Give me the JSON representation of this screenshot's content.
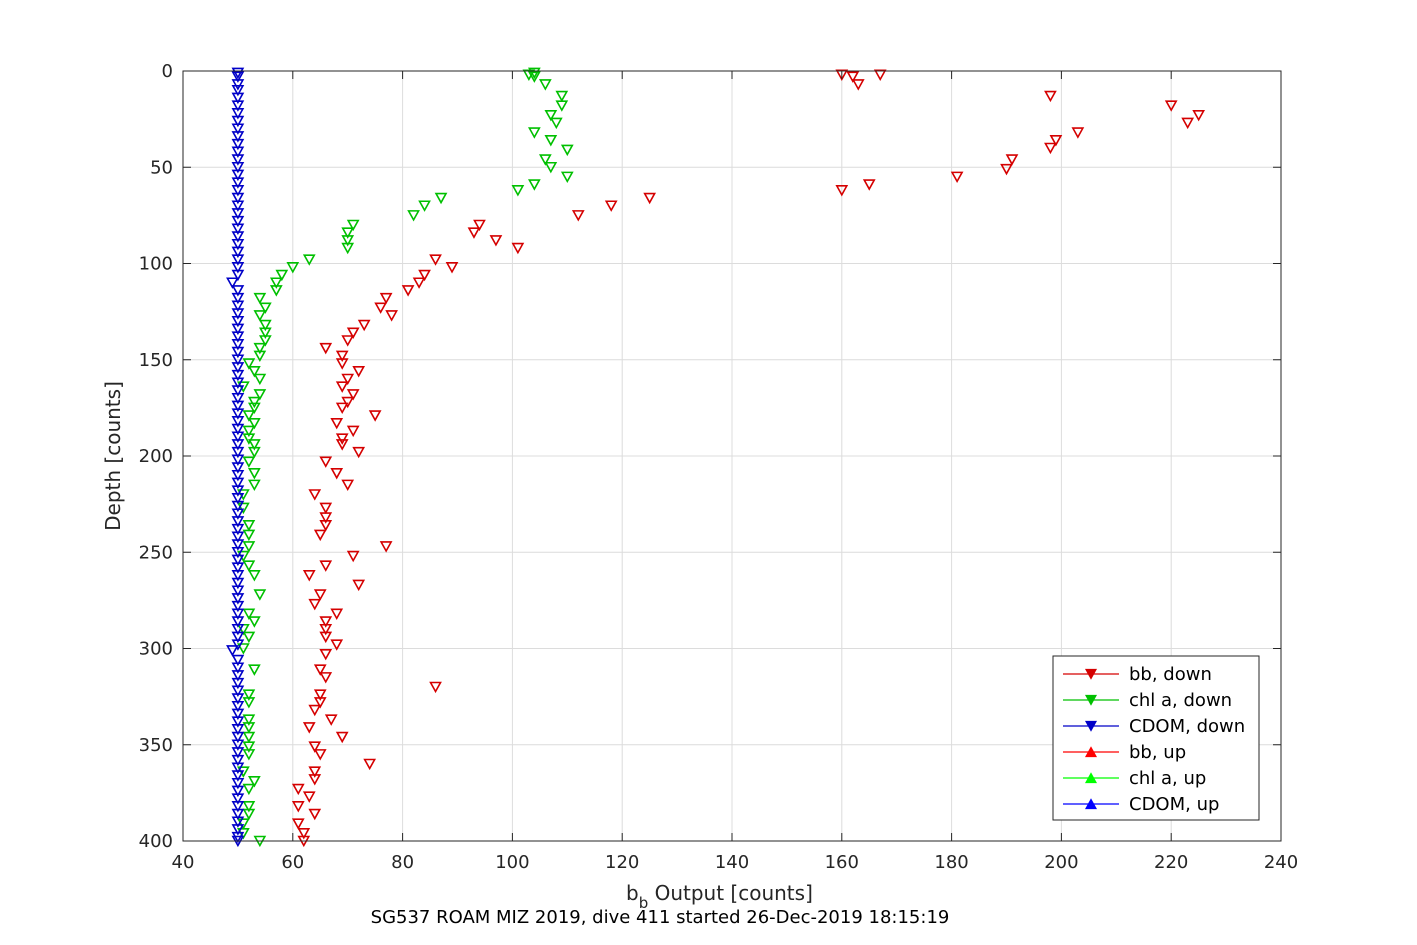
{
  "chart_data": {
    "type": "scatter",
    "xlabel": "b",
    "xlabel_sub": "b",
    "xlabel_rest": " Output [counts]",
    "ylabel": "Depth [counts]",
    "caption": "SG537 ROAM MIZ 2019, dive 411 started 26-Dec-2019 18:15:19",
    "xlim": [
      40,
      240
    ],
    "ylim": [
      0,
      400
    ],
    "y_reversed": true,
    "grid": true,
    "legend_position": "bottom-right",
    "xticks": [
      "40",
      "60",
      "80",
      "100",
      "120",
      "140",
      "160",
      "180",
      "200",
      "220",
      "240"
    ],
    "yticks": [
      "0",
      "50",
      "100",
      "150",
      "200",
      "250",
      "300",
      "350",
      "400"
    ],
    "legend": [
      {
        "label": "bb, down",
        "color": "#d50000",
        "marker": "down"
      },
      {
        "label": "chl a, down",
        "color": "#00c000",
        "marker": "down"
      },
      {
        "label": "CDOM, down",
        "color": "#0000c8",
        "marker": "down"
      },
      {
        "label": "bb, up",
        "color": "#ff0000",
        "marker": "up"
      },
      {
        "label": "chl a, up",
        "color": "#00ff00",
        "marker": "up"
      },
      {
        "label": "CDOM, up",
        "color": "#0000ff",
        "marker": "up"
      }
    ],
    "series": [
      {
        "name": "bb, down",
        "color": "#d50000",
        "marker": "down",
        "points": [
          [
            160,
            2
          ],
          [
            162,
            3
          ],
          [
            167,
            2
          ],
          [
            163,
            7
          ],
          [
            198,
            13
          ],
          [
            220,
            18
          ],
          [
            225,
            23
          ],
          [
            223,
            27
          ],
          [
            203,
            32
          ],
          [
            199,
            36
          ],
          [
            198,
            40
          ],
          [
            191,
            46
          ],
          [
            190,
            51
          ],
          [
            181,
            55
          ],
          [
            165,
            59
          ],
          [
            160,
            62
          ],
          [
            125,
            66
          ],
          [
            118,
            70
          ],
          [
            112,
            75
          ],
          [
            94,
            80
          ],
          [
            93,
            84
          ],
          [
            97,
            88
          ],
          [
            101,
            92
          ],
          [
            86,
            98
          ],
          [
            89,
            102
          ],
          [
            84,
            106
          ],
          [
            83,
            110
          ],
          [
            81,
            114
          ],
          [
            77,
            118
          ],
          [
            76,
            123
          ],
          [
            78,
            127
          ],
          [
            73,
            132
          ],
          [
            71,
            136
          ],
          [
            70,
            140
          ],
          [
            66,
            144
          ],
          [
            69,
            148
          ],
          [
            69,
            152
          ],
          [
            72,
            156
          ],
          [
            70,
            160
          ],
          [
            69,
            164
          ],
          [
            71,
            168
          ],
          [
            70,
            172
          ],
          [
            69,
            175
          ],
          [
            75,
            179
          ],
          [
            68,
            183
          ],
          [
            71,
            187
          ],
          [
            69,
            191
          ],
          [
            69,
            194
          ],
          [
            72,
            198
          ],
          [
            66,
            203
          ],
          [
            68,
            209
          ],
          [
            70,
            215
          ],
          [
            64,
            220
          ],
          [
            66,
            227
          ],
          [
            66,
            232
          ],
          [
            66,
            236
          ],
          [
            65,
            241
          ],
          [
            77,
            247
          ],
          [
            71,
            252
          ],
          [
            66,
            257
          ],
          [
            63,
            262
          ],
          [
            72,
            267
          ],
          [
            65,
            272
          ],
          [
            64,
            277
          ],
          [
            68,
            282
          ],
          [
            66,
            286
          ],
          [
            66,
            290
          ],
          [
            66,
            294
          ],
          [
            68,
            298
          ],
          [
            66,
            303
          ],
          [
            65,
            311
          ],
          [
            66,
            315
          ],
          [
            86,
            320
          ],
          [
            65,
            324
          ],
          [
            65,
            328
          ],
          [
            64,
            332
          ],
          [
            67,
            337
          ],
          [
            63,
            341
          ],
          [
            69,
            346
          ],
          [
            64,
            351
          ],
          [
            65,
            355
          ],
          [
            74,
            360
          ],
          [
            64,
            364
          ],
          [
            64,
            368
          ],
          [
            61,
            373
          ],
          [
            63,
            377
          ],
          [
            61,
            382
          ],
          [
            64,
            386
          ],
          [
            61,
            391
          ],
          [
            62,
            396
          ],
          [
            62,
            400
          ]
        ]
      },
      {
        "name": "chl a, down",
        "color": "#00c000",
        "marker": "down",
        "points": [
          [
            104,
            1
          ],
          [
            103,
            2
          ],
          [
            104,
            3
          ],
          [
            106,
            7
          ],
          [
            109,
            13
          ],
          [
            109,
            18
          ],
          [
            107,
            23
          ],
          [
            108,
            27
          ],
          [
            104,
            32
          ],
          [
            107,
            36
          ],
          [
            110,
            41
          ],
          [
            106,
            46
          ],
          [
            107,
            50
          ],
          [
            110,
            55
          ],
          [
            104,
            59
          ],
          [
            101,
            62
          ],
          [
            87,
            66
          ],
          [
            84,
            70
          ],
          [
            82,
            75
          ],
          [
            71,
            80
          ],
          [
            70,
            84
          ],
          [
            70,
            88
          ],
          [
            70,
            92
          ],
          [
            63,
            98
          ],
          [
            60,
            102
          ],
          [
            58,
            106
          ],
          [
            57,
            110
          ],
          [
            57,
            114
          ],
          [
            54,
            118
          ],
          [
            55,
            123
          ],
          [
            54,
            127
          ],
          [
            55,
            132
          ],
          [
            55,
            136
          ],
          [
            55,
            140
          ],
          [
            54,
            144
          ],
          [
            54,
            148
          ],
          [
            52,
            152
          ],
          [
            53,
            156
          ],
          [
            54,
            160
          ],
          [
            51,
            164
          ],
          [
            54,
            168
          ],
          [
            53,
            172
          ],
          [
            53,
            175
          ],
          [
            52,
            179
          ],
          [
            53,
            183
          ],
          [
            52,
            187
          ],
          [
            52,
            191
          ],
          [
            53,
            194
          ],
          [
            53,
            198
          ],
          [
            52,
            203
          ],
          [
            53,
            209
          ],
          [
            53,
            215
          ],
          [
            51,
            220
          ],
          [
            51,
            227
          ],
          [
            52,
            236
          ],
          [
            52,
            241
          ],
          [
            52,
            247
          ],
          [
            51,
            252
          ],
          [
            52,
            257
          ],
          [
            53,
            262
          ],
          [
            54,
            272
          ],
          [
            52,
            282
          ],
          [
            53,
            286
          ],
          [
            51,
            290
          ],
          [
            52,
            294
          ],
          [
            51,
            300
          ],
          [
            53,
            311
          ],
          [
            52,
            324
          ],
          [
            52,
            328
          ],
          [
            52,
            337
          ],
          [
            52,
            341
          ],
          [
            52,
            346
          ],
          [
            52,
            351
          ],
          [
            52,
            355
          ],
          [
            51,
            364
          ],
          [
            53,
            369
          ],
          [
            52,
            373
          ],
          [
            52,
            382
          ],
          [
            52,
            386
          ],
          [
            51,
            391
          ],
          [
            51,
            396
          ],
          [
            54,
            400
          ]
        ]
      },
      {
        "name": "CDOM, down",
        "color": "#0000c8",
        "marker": "down",
        "points": [
          [
            50,
            1
          ],
          [
            50,
            3
          ],
          [
            50,
            7
          ],
          [
            50,
            10
          ],
          [
            50,
            14
          ],
          [
            50,
            18
          ],
          [
            50,
            22
          ],
          [
            50,
            26
          ],
          [
            50,
            30
          ],
          [
            50,
            34
          ],
          [
            50,
            38
          ],
          [
            50,
            42
          ],
          [
            50,
            46
          ],
          [
            50,
            50
          ],
          [
            50,
            54
          ],
          [
            50,
            58
          ],
          [
            50,
            62
          ],
          [
            50,
            66
          ],
          [
            50,
            70
          ],
          [
            50,
            74
          ],
          [
            50,
            78
          ],
          [
            50,
            82
          ],
          [
            50,
            86
          ],
          [
            50,
            90
          ],
          [
            50,
            94
          ],
          [
            50,
            98
          ],
          [
            50,
            102
          ],
          [
            50,
            106
          ],
          [
            49,
            110
          ],
          [
            50,
            114
          ],
          [
            50,
            118
          ],
          [
            50,
            122
          ],
          [
            50,
            126
          ],
          [
            50,
            130
          ],
          [
            50,
            134
          ],
          [
            50,
            138
          ],
          [
            50,
            142
          ],
          [
            50,
            146
          ],
          [
            50,
            150
          ],
          [
            50,
            154
          ],
          [
            50,
            158
          ],
          [
            50,
            162
          ],
          [
            50,
            166
          ],
          [
            50,
            170
          ],
          [
            50,
            174
          ],
          [
            50,
            178
          ],
          [
            50,
            182
          ],
          [
            50,
            186
          ],
          [
            50,
            190
          ],
          [
            50,
            194
          ],
          [
            50,
            198
          ],
          [
            50,
            202
          ],
          [
            50,
            206
          ],
          [
            50,
            210
          ],
          [
            50,
            214
          ],
          [
            50,
            218
          ],
          [
            50,
            222
          ],
          [
            50,
            226
          ],
          [
            50,
            230
          ],
          [
            50,
            234
          ],
          [
            50,
            238
          ],
          [
            50,
            242
          ],
          [
            50,
            246
          ],
          [
            50,
            250
          ],
          [
            50,
            254
          ],
          [
            50,
            258
          ],
          [
            50,
            262
          ],
          [
            50,
            266
          ],
          [
            50,
            270
          ],
          [
            50,
            274
          ],
          [
            50,
            278
          ],
          [
            50,
            282
          ],
          [
            50,
            286
          ],
          [
            50,
            290
          ],
          [
            50,
            294
          ],
          [
            50,
            298
          ],
          [
            49,
            301
          ],
          [
            50,
            306
          ],
          [
            50,
            310
          ],
          [
            50,
            314
          ],
          [
            50,
            318
          ],
          [
            50,
            322
          ],
          [
            50,
            326
          ],
          [
            50,
            330
          ],
          [
            50,
            334
          ],
          [
            50,
            338
          ],
          [
            50,
            342
          ],
          [
            50,
            346
          ],
          [
            50,
            350
          ],
          [
            50,
            354
          ],
          [
            50,
            358
          ],
          [
            50,
            362
          ],
          [
            50,
            366
          ],
          [
            50,
            370
          ],
          [
            50,
            374
          ],
          [
            50,
            378
          ],
          [
            50,
            382
          ],
          [
            50,
            386
          ],
          [
            50,
            390
          ],
          [
            50,
            394
          ],
          [
            50,
            398
          ],
          [
            50,
            400
          ]
        ]
      }
    ]
  }
}
